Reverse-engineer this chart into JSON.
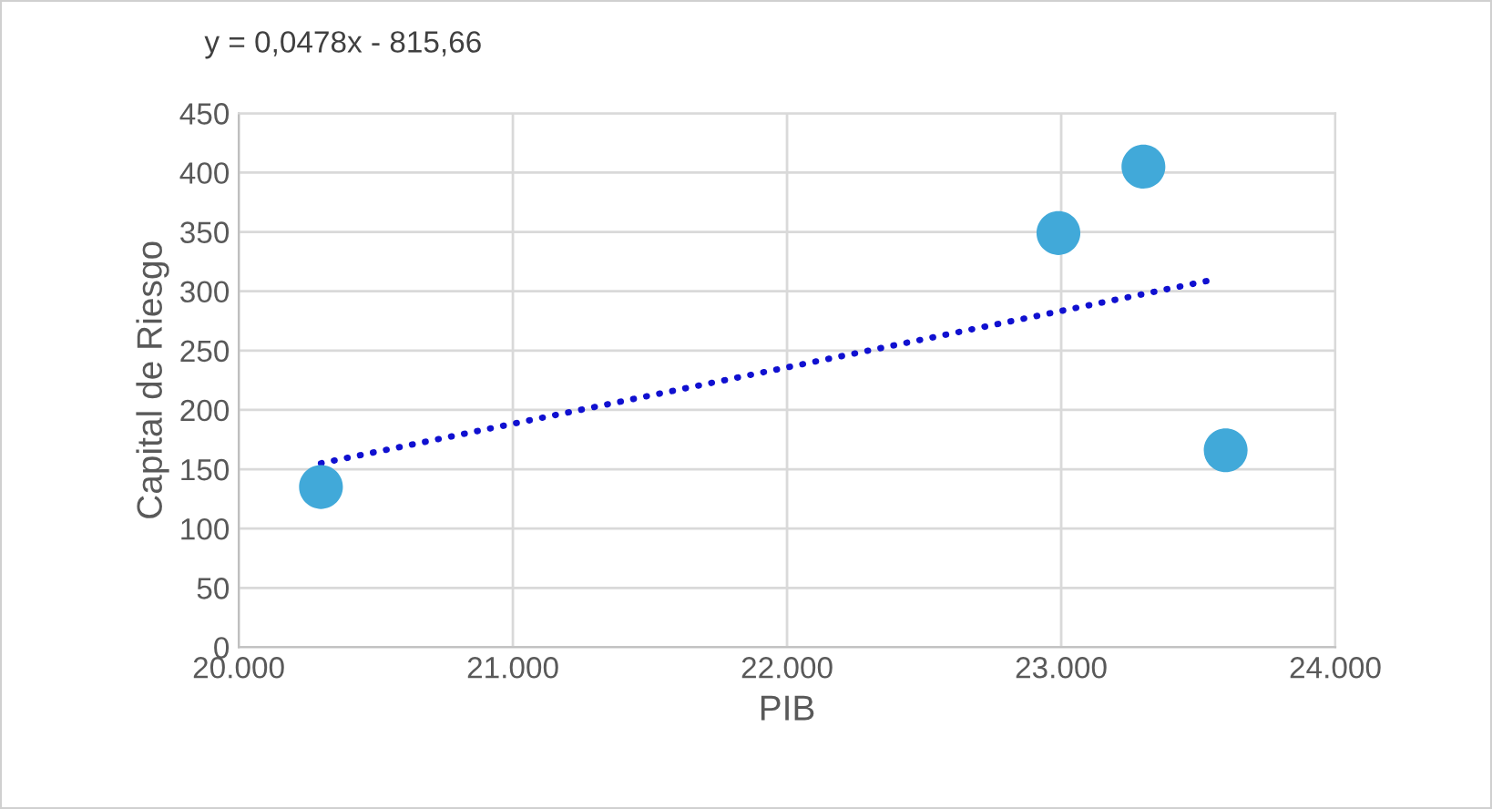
{
  "chart_data": {
    "type": "scatter",
    "xlabel": "PIB",
    "ylabel": "Capital de Riesgo",
    "annotations": [
      "y = 0,0478x - 815,66"
    ],
    "series": [
      {
        "color": "#41a9d9",
        "marker": "circle",
        "x": [
          20300,
          22990,
          23300,
          23600
        ],
        "values": [
          135,
          349,
          405,
          166
        ]
      },
      {
        "type": "line",
        "color": "#1010d0",
        "line_style": "dotted",
        "marker": "none",
        "x": [
          20300,
          23560
        ],
        "values": [
          155,
          310
        ]
      }
    ],
    "xlim": [
      20000,
      24000
    ],
    "xticks": [
      {
        "value": 20000,
        "label": "20.000"
      },
      {
        "value": 21000,
        "label": "21.000"
      },
      {
        "value": 22000,
        "label": "22.000"
      },
      {
        "value": 23000,
        "label": "23.000"
      },
      {
        "value": 24000,
        "label": "24.000"
      }
    ],
    "ylim": [
      0,
      450
    ],
    "yticks": [
      0,
      50,
      100,
      150,
      200,
      250,
      300,
      350,
      400,
      450
    ],
    "grid": true
  }
}
